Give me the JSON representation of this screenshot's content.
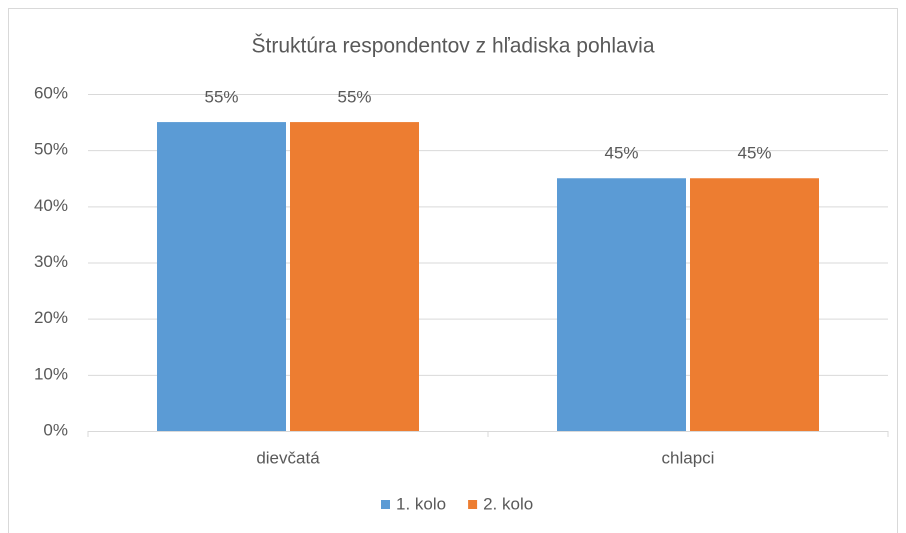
{
  "chart_data": {
    "type": "bar",
    "title": "Štruktúra respondentov z hľadiska pohlavia",
    "categories": [
      "dievčatá",
      "chlapci"
    ],
    "series": [
      {
        "name": "1. kolo",
        "color": "#5b9bd5",
        "values": [
          55,
          45
        ],
        "value_labels": [
          "55%",
          "45%"
        ]
      },
      {
        "name": "2. kolo",
        "color": "#ed7d31",
        "values": [
          55,
          45
        ],
        "value_labels": [
          "55%",
          "45%"
        ]
      }
    ],
    "ylim": [
      0,
      60
    ],
    "yticks": [
      {
        "value": 0,
        "label": "0%"
      },
      {
        "value": 10,
        "label": "10%"
      },
      {
        "value": 20,
        "label": "20%"
      },
      {
        "value": 30,
        "label": "30%"
      },
      {
        "value": 40,
        "label": "40%"
      },
      {
        "value": 50,
        "label": "50%"
      },
      {
        "value": 60,
        "label": "60%"
      }
    ],
    "grid": true,
    "legend": "bottom"
  }
}
